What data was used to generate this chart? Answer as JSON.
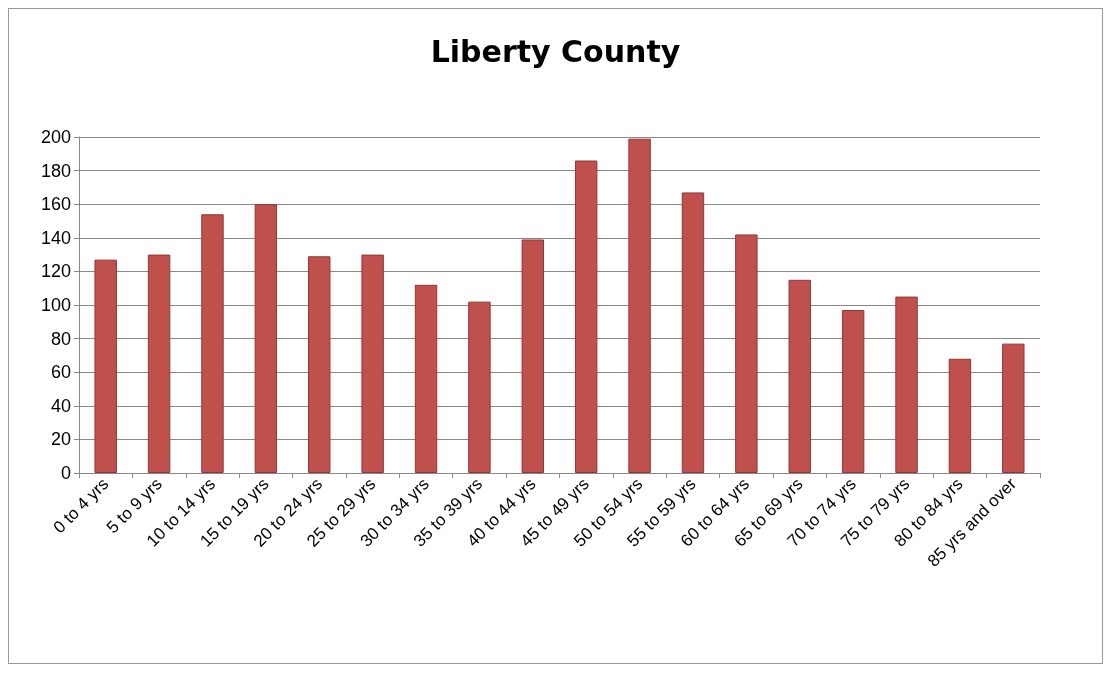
{
  "chart_data": {
    "type": "bar",
    "title": "Liberty County",
    "categories": [
      "0 to 4 yrs",
      "5 to 9 yrs",
      "10 to 14 yrs",
      "15 to 19 yrs",
      "20 to 24 yrs",
      "25 to 29 yrs",
      "30 to 34 yrs",
      "35 to 39 yrs",
      "40 to 44 yrs",
      "45 to 49 yrs",
      "50 to 54 yrs",
      "55 to 59 yrs",
      "60 to 64 yrs",
      "65 to 69 yrs",
      "70 to 74 yrs",
      "75 to 79 yrs",
      "80 to 84 yrs",
      "85 yrs and over"
    ],
    "values": [
      127,
      130,
      154,
      160,
      129,
      130,
      112,
      102,
      139,
      186,
      199,
      167,
      142,
      115,
      97,
      105,
      68,
      77
    ],
    "color": "#c0504d",
    "ylim": [
      0,
      200
    ],
    "yticks": [
      0,
      20,
      40,
      60,
      80,
      100,
      120,
      140,
      160,
      180,
      200
    ],
    "grid": "y"
  }
}
